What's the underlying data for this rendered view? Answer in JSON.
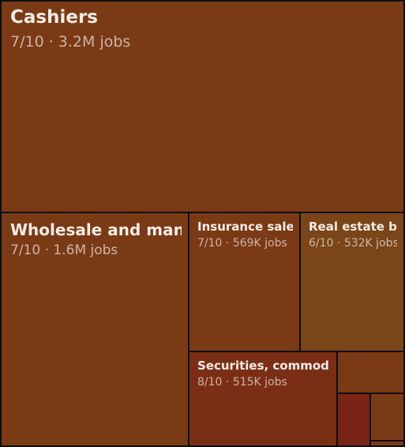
{
  "chart_data": {
    "type": "treemap",
    "tiles": [
      {
        "name": "Cashiers",
        "score": "7/10",
        "jobs": "3.2M jobs",
        "jobs_value": 3200000,
        "score_value": 7,
        "color": "#7a3a16"
      },
      {
        "name": "Wholesale and manufacturing sales representatives",
        "score": "7/10",
        "jobs": "1.6M jobs",
        "jobs_value": 1600000,
        "score_value": 7,
        "color": "#7a3a16"
      },
      {
        "name": "Insurance sales agents",
        "score": "7/10",
        "jobs": "569K jobs",
        "jobs_value": 569000,
        "score_value": 7,
        "color": "#7a3a16"
      },
      {
        "name": "Real estate brokers and sales agents",
        "score": "6/10",
        "jobs": "532K jobs",
        "jobs_value": 532000,
        "score_value": 6,
        "color": "#7a4518"
      },
      {
        "name": "Securities, commodities, and financial services sales agents",
        "score": "8/10",
        "jobs": "515K jobs",
        "jobs_value": 515000,
        "score_value": 8,
        "color": "#7a2e16"
      },
      {
        "name": "",
        "score": "",
        "jobs": "",
        "color": "#7a3a16"
      },
      {
        "name": "",
        "score": "",
        "jobs": "",
        "color": "#7a2418"
      },
      {
        "name": "",
        "score": "",
        "jobs": "",
        "color": "#7a3a16"
      },
      {
        "name": "",
        "score": "",
        "jobs": "",
        "color": "#7a3a16"
      }
    ]
  }
}
